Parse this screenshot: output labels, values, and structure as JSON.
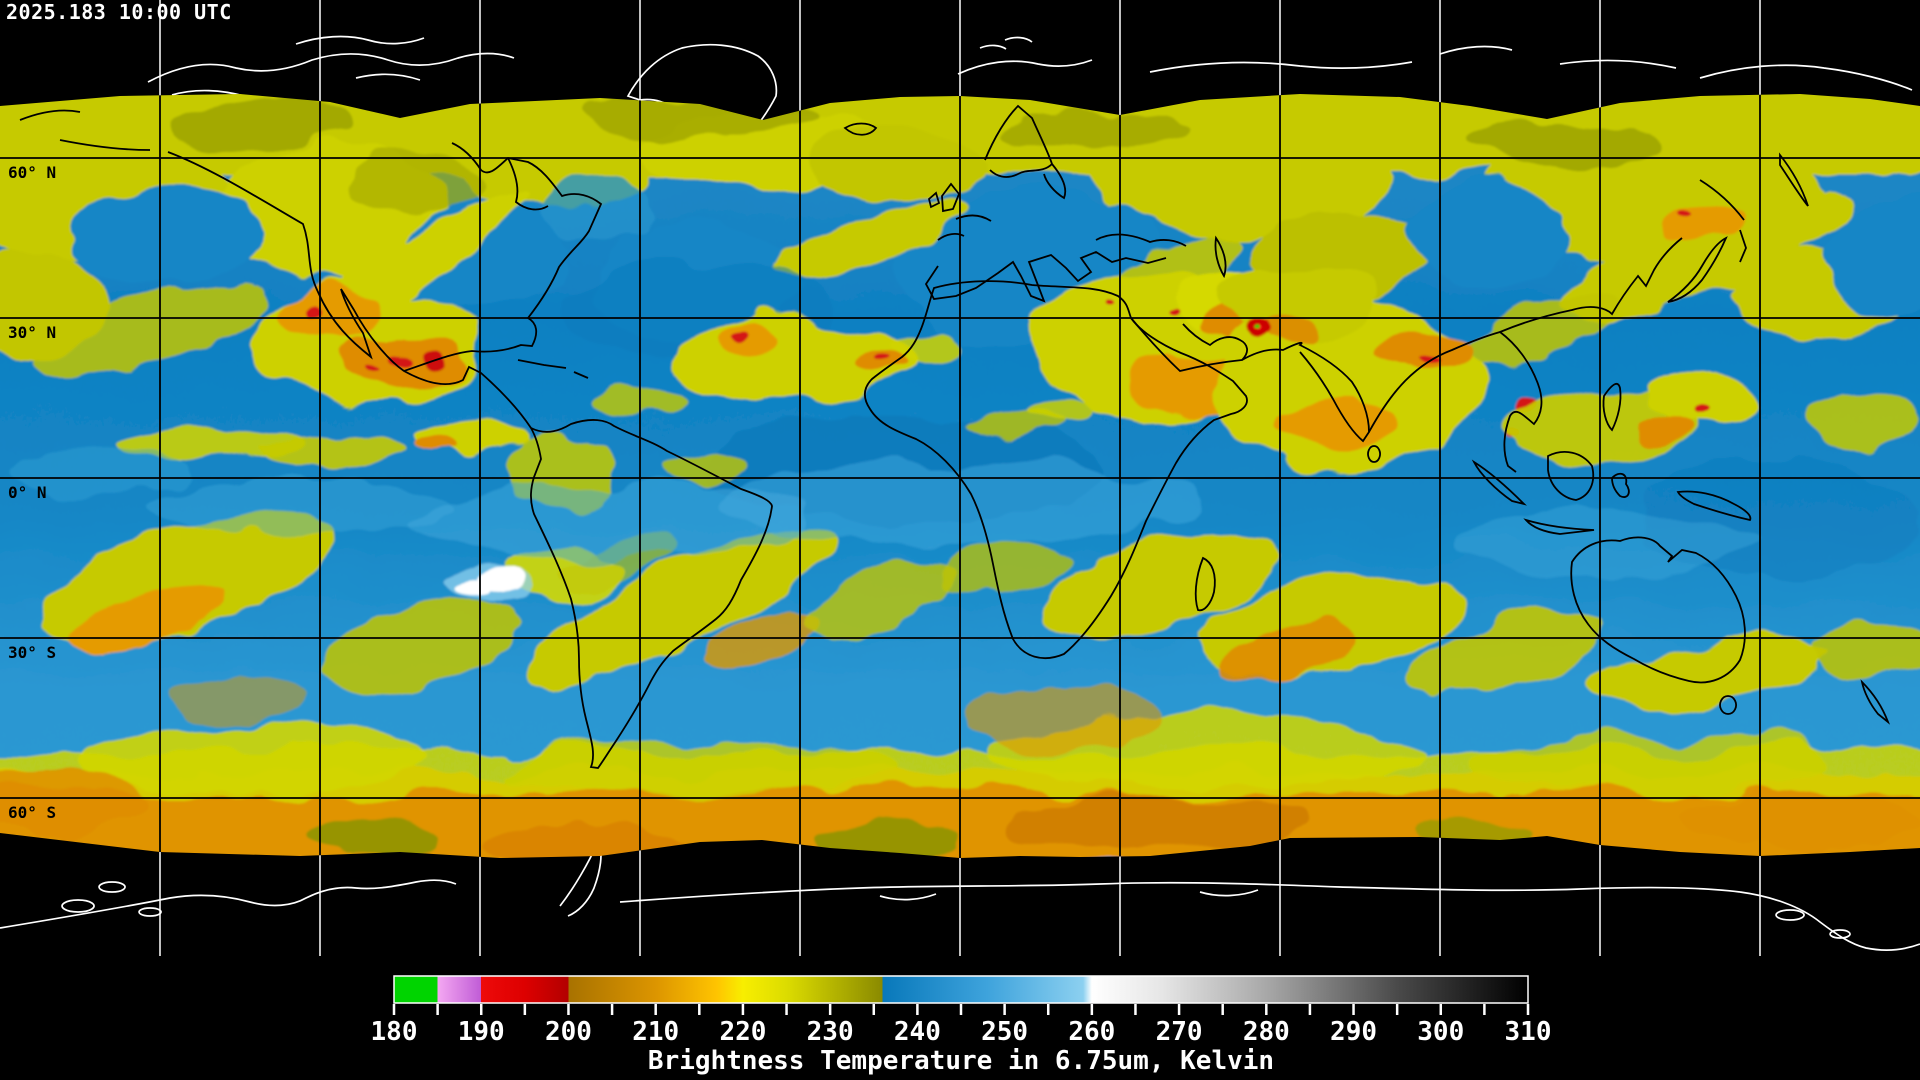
{
  "header": {
    "timestamp": "2025.183 10:00 UTC"
  },
  "map": {
    "projection": "global lat-lon grid",
    "lat_labels": [
      "60° N",
      "30° N",
      "0° N",
      "30° S",
      "60° S"
    ],
    "grid_color_over_data": "#000000",
    "grid_color_over_nodata": "#ffffff",
    "coastline_color_over_data": "#000000",
    "coastline_color_over_nodata": "#ffffff",
    "nodata_color": "#000000",
    "ocean_dry_color": "#1486c6",
    "moist_color": "#c6ca00",
    "cold_cloud_color": "#e59b00",
    "coldest_cloud_color": "#d41414",
    "warm_surface_color": "#ffffff"
  },
  "colorbar": {
    "title": "Brightness Temperature in 6.75um, Kelvin",
    "min": 180,
    "max": 310,
    "minor_tick_step": 5,
    "label_step": 10,
    "tick_labels": [
      "180",
      "190",
      "200",
      "210",
      "220",
      "230",
      "240",
      "250",
      "260",
      "270",
      "280",
      "290",
      "300",
      "310"
    ],
    "palette": [
      {
        "v": 180,
        "color": "#00d400"
      },
      {
        "v": 185,
        "color": "#00d400"
      },
      {
        "v": 185,
        "color": "#f4a8f2"
      },
      {
        "v": 190,
        "color": "#c05cd6"
      },
      {
        "v": 190,
        "color": "#ee0a0a"
      },
      {
        "v": 195,
        "color": "#dd0000"
      },
      {
        "v": 200,
        "color": "#b20000"
      },
      {
        "v": 200,
        "color": "#a87200"
      },
      {
        "v": 210,
        "color": "#dc9500"
      },
      {
        "v": 217,
        "color": "#ffc400"
      },
      {
        "v": 220,
        "color": "#f8ee00"
      },
      {
        "v": 225,
        "color": "#dcdc00"
      },
      {
        "v": 236,
        "color": "#8a8a00"
      },
      {
        "v": 236,
        "color": "#0878ba"
      },
      {
        "v": 248,
        "color": "#3ea3dc"
      },
      {
        "v": 259,
        "color": "#8cd0f0"
      },
      {
        "v": 260,
        "color": "#ffffff"
      },
      {
        "v": 268,
        "color": "#e6e6e6"
      },
      {
        "v": 280,
        "color": "#a8a8a8"
      },
      {
        "v": 295,
        "color": "#4a4a4a"
      },
      {
        "v": 310,
        "color": "#000000"
      }
    ]
  }
}
